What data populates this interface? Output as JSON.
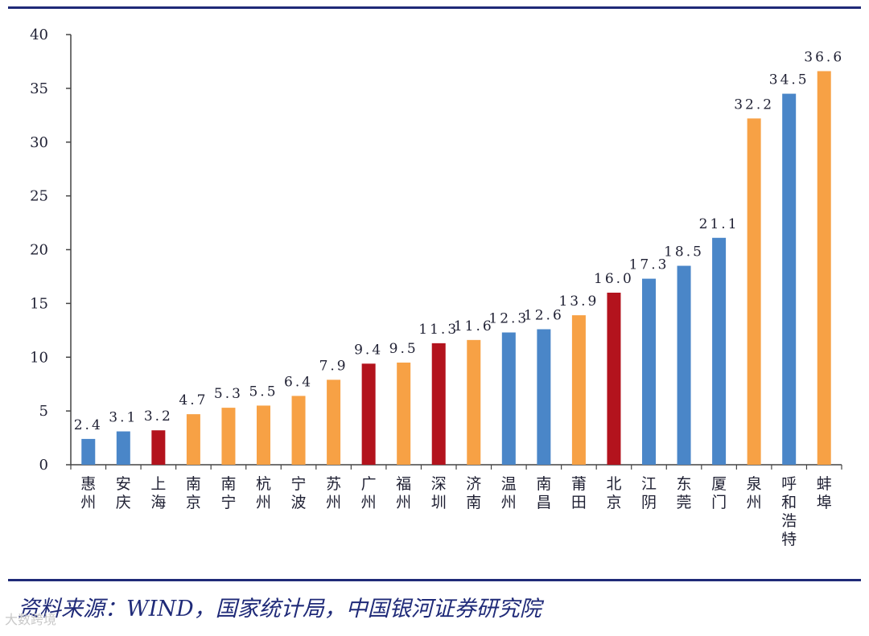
{
  "chart_data": {
    "type": "bar",
    "title": "",
    "xlabel": "",
    "ylabel": "",
    "ylim": [
      0,
      40
    ],
    "yticks": [
      0,
      5,
      10,
      15,
      20,
      25,
      30,
      35,
      40
    ],
    "categories": [
      "惠州",
      "安庆",
      "上海",
      "南京",
      "南宁",
      "杭州",
      "宁波",
      "苏州",
      "广州",
      "福州",
      "深圳",
      "济南",
      "温州",
      "南昌",
      "莆田",
      "北京",
      "江阴",
      "东莞",
      "厦门",
      "泉州",
      "呼和浩特",
      "蚌埠"
    ],
    "values": [
      2.4,
      3.1,
      3.2,
      4.7,
      5.3,
      5.5,
      6.4,
      7.9,
      9.4,
      9.5,
      11.3,
      11.6,
      12.3,
      12.6,
      13.9,
      16.0,
      17.3,
      18.5,
      21.1,
      32.2,
      34.5,
      36.6
    ],
    "value_labels": [
      "2.4",
      "3.1",
      "3.2",
      "4.7",
      "5.3",
      "5.5",
      "6.4",
      "7.9",
      "9.4",
      "9.5",
      "11.3",
      "11.6",
      "12.3",
      "12.6",
      "13.9",
      "16.0",
      "17.3",
      "18.5",
      "21.1",
      "32.2",
      "34.5",
      "36.6"
    ],
    "bar_colors": [
      "blue",
      "blue",
      "red",
      "orange",
      "orange",
      "orange",
      "orange",
      "orange",
      "red",
      "orange",
      "red",
      "orange",
      "blue",
      "blue",
      "orange",
      "red",
      "blue",
      "blue",
      "blue",
      "orange",
      "blue",
      "orange"
    ],
    "palette": {
      "blue": "#4a86c8",
      "orange": "#f7a145",
      "red": "#b3131d"
    },
    "grid": false,
    "legend": "none"
  },
  "footer": {
    "source": "资料来源：WIND，国家统计局，中国银河证券研究院",
    "watermark": "大数跨境"
  },
  "colors": {
    "rule": "#1f2a78",
    "text": "#1f2033"
  }
}
